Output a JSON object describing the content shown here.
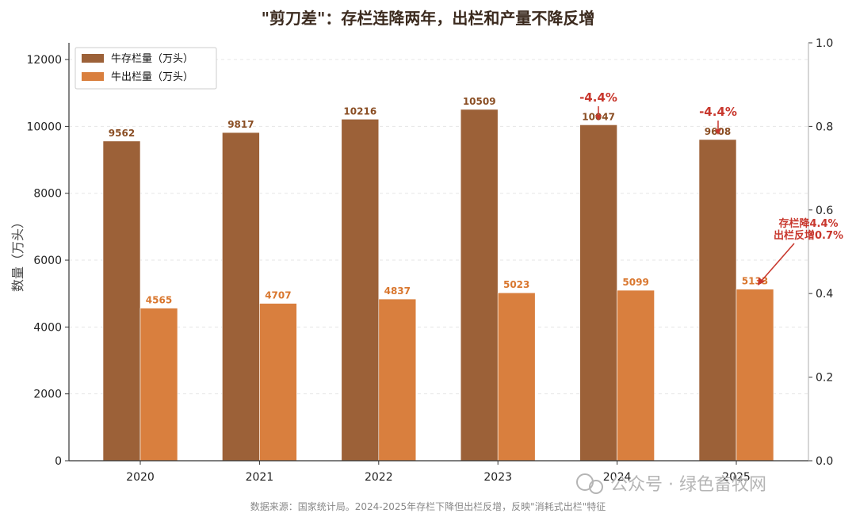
{
  "chart_data": {
    "type": "bar",
    "title": "\"剪刀差\"：存栏连降两年，出栏和产量不降反增",
    "ylabel": "数量（万头）",
    "categories": [
      "2020",
      "2021",
      "2022",
      "2023",
      "2024",
      "2025"
    ],
    "series": [
      {
        "name": "牛存栏量（万头）",
        "values": [
          9562,
          9817,
          10216,
          10509,
          10047,
          9608
        ],
        "color": "#9c6138"
      },
      {
        "name": "牛出栏量（万头）",
        "values": [
          4565,
          4707,
          4837,
          5023,
          5099,
          5133
        ],
        "color": "#d97f3e"
      }
    ],
    "ylim": [
      0,
      12500
    ],
    "yticks": [
      "0",
      "2000",
      "4000",
      "6000",
      "8000",
      "10000",
      "12000"
    ],
    "y2lim": [
      0,
      1
    ],
    "y2ticks": [
      "0.0",
      "0.2",
      "0.4",
      "0.6",
      "0.8",
      "1.0"
    ],
    "legend_position": "top-left",
    "grid": true,
    "annotations": [
      {
        "text": "-4.4%",
        "category": "2024"
      },
      {
        "text": "-4.4%",
        "category": "2025"
      }
    ],
    "note_lines": [
      "存栏降4.4%",
      "出栏反增0.7%"
    ],
    "source": "数据来源：国家统计局。2024-2025年存栏下降但出栏反增，反映\"消耗式出栏\"特征"
  },
  "watermark": "公众号 · 绿色畜牧网",
  "colors": {
    "accent": "#c8372d",
    "axis": "#333333",
    "grid": "#e6e6e6"
  }
}
